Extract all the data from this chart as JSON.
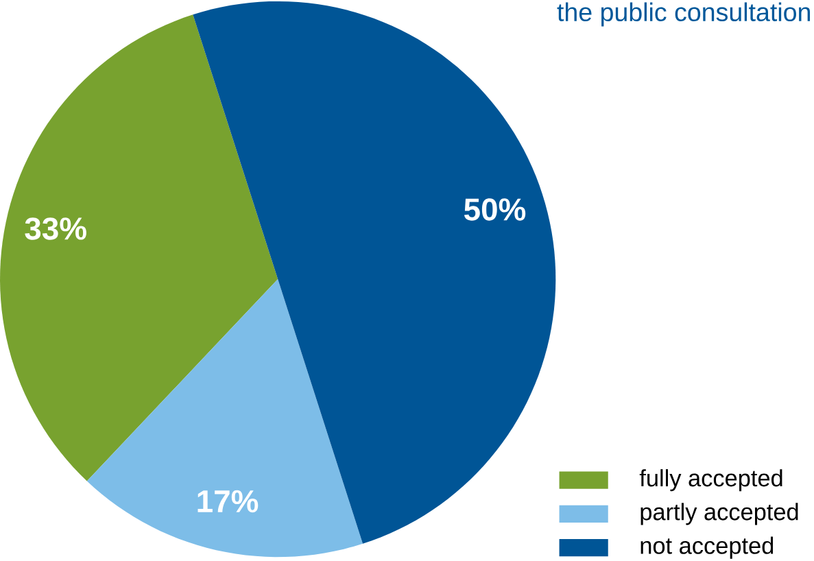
{
  "chart_data": {
    "type": "pie",
    "title": "the public consultation",
    "categories": [
      "fully accepted",
      "partly accepted",
      "not accepted"
    ],
    "values": [
      33,
      17,
      50
    ],
    "colors": [
      "#78a22f",
      "#7dbde8",
      "#005596"
    ],
    "value_labels": [
      "33%",
      "17%",
      "50%"
    ],
    "legend": "bottom right"
  }
}
